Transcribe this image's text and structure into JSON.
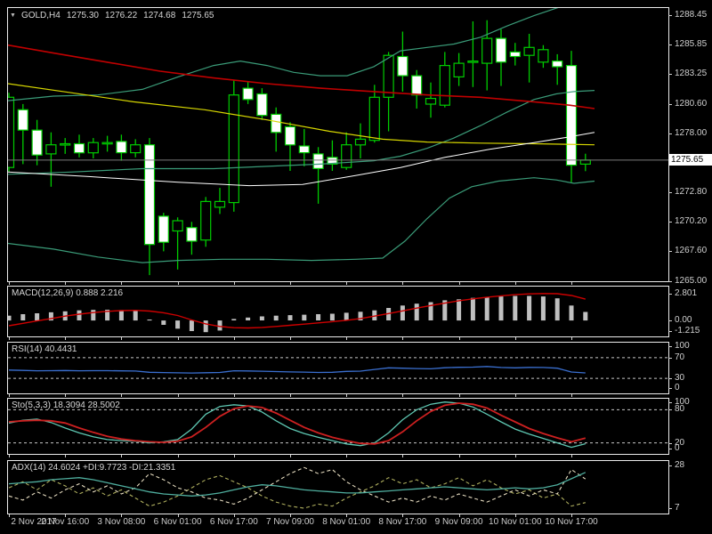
{
  "title": {
    "symbol_period": "GOLD,H4",
    "open": "1275.30",
    "high": "1276.22",
    "low": "1274.68",
    "close": "1275.65",
    "dropdown_icon": "symbol-dropdown"
  },
  "colors": {
    "background": "#000000",
    "panel_border": "#ececec",
    "candle_outline": "#00cc00",
    "bull_fill": "#000000",
    "bear_fill": "#ffffff",
    "bollinger": "#3a9b78",
    "ma_red": "#c00000",
    "ma_yellow": "#d6d600",
    "ma_white": "#ffffff",
    "current_price_line": "#7d7d7d",
    "price_tag_bg": "#ffffff",
    "price_tag_text": "#000000",
    "macd_histogram": "#c0c0c0",
    "macd_signal": "#cc0000",
    "rsi_line": "#3a6fd0",
    "level_dash": "#c8c8c8",
    "sto_main": "#5ec7b2",
    "sto_signal": "#cc2020",
    "adx_main": "#4fae9e",
    "adx_plus_di": "#aeae5e",
    "adx_minus_di": "#e6dcc0",
    "axis_text": "#cfcfcf"
  },
  "price_axis": {
    "labels": [
      {
        "text": "1288.45",
        "value": 1288.45
      },
      {
        "text": "1285.85",
        "value": 1285.85
      },
      {
        "text": "1283.25",
        "value": 1283.25
      },
      {
        "text": "1280.60",
        "value": 1280.6
      },
      {
        "text": "1278.00",
        "value": 1278.0
      },
      {
        "text": "1272.80",
        "value": 1272.8
      },
      {
        "text": "1270.20",
        "value": 1270.2
      },
      {
        "text": "1267.60",
        "value": 1267.6
      },
      {
        "text": "1265.00",
        "value": 1265.0
      }
    ],
    "current": {
      "text": "1275.65",
      "value": 1275.65
    }
  },
  "time_axis": {
    "labels": [
      {
        "text": "2 Nov 2017",
        "bar": 0
      },
      {
        "text": "2 Nov 16:00",
        "bar": 4
      },
      {
        "text": "3 Nov 08:00",
        "bar": 8
      },
      {
        "text": "6 Nov 01:00",
        "bar": 12
      },
      {
        "text": "6 Nov 17:00",
        "bar": 16
      },
      {
        "text": "7 Nov 09:00",
        "bar": 20
      },
      {
        "text": "8 Nov 01:00",
        "bar": 24
      },
      {
        "text": "8 Nov 17:00",
        "bar": 28
      },
      {
        "text": "9 Nov 09:00",
        "bar": 32
      },
      {
        "text": "10 Nov 01:00",
        "bar": 36
      },
      {
        "text": "10 Nov 17:00",
        "bar": 40
      }
    ]
  },
  "chart_data": {
    "type": "candlestick",
    "title": "GOLD,H4",
    "main": {
      "ylim": [
        1265.0,
        1288.45
      ],
      "current_price": 1275.65,
      "candles_ohlc": [
        [
          1275.0,
          1281.6,
          1274.6,
          1281.2
        ],
        [
          1280.1,
          1280.6,
          1275.3,
          1278.3
        ],
        [
          1278.3,
          1279.2,
          1275.2,
          1276.1
        ],
        [
          1276.2,
          1278.1,
          1273.3,
          1277.0
        ],
        [
          1277.0,
          1277.6,
          1276.2,
          1277.1
        ],
        [
          1277.1,
          1277.9,
          1275.9,
          1276.3
        ],
        [
          1276.3,
          1277.6,
          1275.8,
          1277.2
        ],
        [
          1277.2,
          1277.8,
          1276.4,
          1277.2
        ],
        [
          1277.3,
          1277.9,
          1275.6,
          1276.3
        ],
        [
          1276.3,
          1277.5,
          1275.9,
          1277.0
        ],
        [
          1277.0,
          1277.6,
          1265.5,
          1268.2
        ],
        [
          1270.7,
          1271.0,
          1267.6,
          1268.4
        ],
        [
          1269.4,
          1270.6,
          1266.0,
          1270.3
        ],
        [
          1269.7,
          1270.2,
          1267.3,
          1268.5
        ],
        [
          1268.6,
          1272.4,
          1268.0,
          1272.0
        ],
        [
          1271.5,
          1273.2,
          1270.9,
          1272.0
        ],
        [
          1271.9,
          1282.7,
          1271.1,
          1281.4
        ],
        [
          1282.0,
          1282.6,
          1280.6,
          1281.0
        ],
        [
          1281.5,
          1282.0,
          1279.2,
          1279.6
        ],
        [
          1279.7,
          1280.3,
          1276.4,
          1278.1
        ],
        [
          1278.6,
          1279.0,
          1274.7,
          1277.0
        ],
        [
          1276.9,
          1278.4,
          1275.1,
          1276.3
        ],
        [
          1276.2,
          1276.8,
          1271.8,
          1274.9
        ],
        [
          1275.9,
          1277.4,
          1274.7,
          1275.3
        ],
        [
          1275.0,
          1278.1,
          1274.8,
          1277.0
        ],
        [
          1277.0,
          1278.9,
          1275.8,
          1277.5
        ],
        [
          1277.4,
          1282.3,
          1277.2,
          1281.2
        ],
        [
          1281.2,
          1285.2,
          1278.2,
          1284.9
        ],
        [
          1284.8,
          1287.0,
          1281.7,
          1283.1
        ],
        [
          1283.1,
          1283.6,
          1280.2,
          1281.4
        ],
        [
          1280.6,
          1282.5,
          1279.4,
          1281.1
        ],
        [
          1280.5,
          1285.2,
          1280.3,
          1284.0
        ],
        [
          1283.0,
          1285.1,
          1282.2,
          1284.2
        ],
        [
          1284.3,
          1287.9,
          1282.1,
          1284.4
        ],
        [
          1284.2,
          1288.0,
          1281.8,
          1286.4
        ],
        [
          1286.4,
          1287.2,
          1282.2,
          1284.3
        ],
        [
          1285.2,
          1286.0,
          1284.0,
          1284.8
        ],
        [
          1284.9,
          1286.8,
          1282.5,
          1285.6
        ],
        [
          1284.3,
          1285.8,
          1283.8,
          1285.4
        ],
        [
          1284.4,
          1285.0,
          1282.3,
          1283.9
        ],
        [
          1284.0,
          1285.3,
          1273.7,
          1275.2
        ],
        [
          1275.3,
          1276.22,
          1274.68,
          1275.65
        ]
      ],
      "overlays": {
        "bb_upper": [
          [
            9,
            1280.9
          ],
          [
            60,
            1281.3
          ],
          [
            110,
            1281.4
          ],
          [
            160,
            1281.9
          ],
          [
            200,
            1283.0
          ],
          [
            240,
            1284.0
          ],
          [
            270,
            1284.4
          ],
          [
            300,
            1284.0
          ],
          [
            330,
            1283.4
          ],
          [
            360,
            1283.1
          ],
          [
            390,
            1283.1
          ],
          [
            420,
            1283.9
          ],
          [
            450,
            1285.3
          ],
          [
            480,
            1285.6
          ],
          [
            510,
            1285.9
          ],
          [
            540,
            1286.5
          ],
          [
            570,
            1287.5
          ],
          [
            600,
            1288.4
          ],
          [
            630,
            1289.2
          ],
          [
            655,
            1289.6
          ],
          [
            668,
            1289.7
          ]
        ],
        "bb_middle": [
          [
            9,
            1274.4
          ],
          [
            80,
            1274.6
          ],
          [
            160,
            1274.9
          ],
          [
            240,
            1274.9
          ],
          [
            300,
            1275.1
          ],
          [
            360,
            1275.3
          ],
          [
            420,
            1275.6
          ],
          [
            450,
            1276.0
          ],
          [
            480,
            1276.7
          ],
          [
            510,
            1277.6
          ],
          [
            540,
            1278.7
          ],
          [
            570,
            1279.9
          ],
          [
            600,
            1281.0
          ],
          [
            625,
            1281.5
          ],
          [
            645,
            1281.7
          ],
          [
            668,
            1281.8
          ]
        ],
        "bb_lower": [
          [
            9,
            1268.3
          ],
          [
            60,
            1267.8
          ],
          [
            110,
            1267.1
          ],
          [
            160,
            1266.6
          ],
          [
            200,
            1266.8
          ],
          [
            250,
            1266.9
          ],
          [
            300,
            1266.9
          ],
          [
            350,
            1266.8
          ],
          [
            400,
            1266.9
          ],
          [
            430,
            1267.0
          ],
          [
            455,
            1268.5
          ],
          [
            480,
            1270.5
          ],
          [
            505,
            1272.3
          ],
          [
            530,
            1273.3
          ],
          [
            560,
            1273.8
          ],
          [
            600,
            1274.1
          ],
          [
            625,
            1273.9
          ],
          [
            645,
            1273.6
          ],
          [
            668,
            1273.8
          ]
        ],
        "ma_red": [
          [
            9,
            1285.8
          ],
          [
            60,
            1285.1
          ],
          [
            120,
            1284.3
          ],
          [
            180,
            1283.5
          ],
          [
            240,
            1282.9
          ],
          [
            300,
            1282.4
          ],
          [
            360,
            1282.0
          ],
          [
            420,
            1281.7
          ],
          [
            480,
            1281.4
          ],
          [
            540,
            1281.2
          ],
          [
            600,
            1280.8
          ],
          [
            640,
            1280.5
          ],
          [
            668,
            1280.2
          ]
        ],
        "ma_yellow": [
          [
            9,
            1282.4
          ],
          [
            80,
            1281.6
          ],
          [
            150,
            1280.8
          ],
          [
            230,
            1280.1
          ],
          [
            300,
            1279.2
          ],
          [
            370,
            1278.2
          ],
          [
            430,
            1277.5
          ],
          [
            480,
            1277.25
          ],
          [
            540,
            1277.15
          ],
          [
            600,
            1277.1
          ],
          [
            668,
            1277.0
          ]
        ],
        "ma_white": [
          [
            9,
            1274.6
          ],
          [
            100,
            1274.2
          ],
          [
            200,
            1273.7
          ],
          [
            280,
            1273.4
          ],
          [
            340,
            1273.5
          ],
          [
            400,
            1274.3
          ],
          [
            450,
            1275.0
          ],
          [
            500,
            1275.9
          ],
          [
            550,
            1276.6
          ],
          [
            600,
            1277.2
          ],
          [
            640,
            1277.7
          ],
          [
            668,
            1278.1
          ]
        ]
      }
    },
    "macd": {
      "label": "MACD(12,26,9) 0.888 2.216",
      "value_main": 0.888,
      "value_signal": 2.216,
      "axis": [
        {
          "text": "2.801",
          "v": 2.801
        },
        {
          "text": "0.00",
          "v": 0
        },
        {
          "text": "-1.215",
          "v": -1.215
        }
      ],
      "histogram": [
        0.5,
        0.65,
        0.75,
        0.85,
        0.95,
        1.05,
        1.1,
        1.12,
        1.08,
        1.0,
        0.1,
        -0.45,
        -0.85,
        -1.1,
        -1.215,
        -1.05,
        0.15,
        0.3,
        0.42,
        0.5,
        0.55,
        0.6,
        0.65,
        0.7,
        0.8,
        0.9,
        1.05,
        1.3,
        1.55,
        1.75,
        1.9,
        2.1,
        2.2,
        2.35,
        2.45,
        2.5,
        2.55,
        2.55,
        2.5,
        2.3,
        1.55,
        0.888
      ],
      "signal": [
        -0.55,
        -0.3,
        -0.05,
        0.2,
        0.45,
        0.65,
        0.82,
        0.95,
        1.02,
        1.05,
        0.98,
        0.8,
        0.52,
        0.05,
        -0.35,
        -0.62,
        -0.75,
        -0.78,
        -0.72,
        -0.62,
        -0.5,
        -0.38,
        -0.25,
        -0.12,
        0.02,
        0.2,
        0.45,
        0.72,
        1.0,
        1.28,
        1.55,
        1.8,
        2.05,
        2.25,
        2.42,
        2.56,
        2.68,
        2.76,
        2.8,
        2.78,
        2.6,
        2.216
      ]
    },
    "rsi": {
      "label": "RSI(14) 40.4431",
      "value": 40.4431,
      "levels": [
        70,
        30
      ],
      "axis": [
        {
          "text": "100",
          "v": 100
        },
        {
          "text": "70",
          "v": 70
        },
        {
          "text": "30",
          "v": 30
        },
        {
          "text": "0",
          "v": 0
        }
      ],
      "values": [
        46.0,
        45.3,
        44.7,
        44.9,
        45.1,
        44.7,
        44.9,
        44.8,
        44.4,
        44.1,
        41.8,
        41.2,
        40.7,
        40.4,
        40.9,
        41.3,
        44.6,
        44.3,
        43.8,
        43.1,
        42.5,
        42.1,
        41.3,
        41.7,
        43.4,
        44.0,
        47.2,
        50.3,
        49.7,
        48.9,
        48.5,
        50.6,
        51.4,
        51.8,
        53.0,
        51.0,
        50.3,
        51.2,
        51.0,
        49.7,
        42.2,
        40.4431
      ]
    },
    "sto": {
      "label": "Sto(5,3,3) 18.3094 28.5002",
      "value_k": 18.3094,
      "value_d": 28.5002,
      "levels": [
        80,
        20
      ],
      "axis": [
        {
          "text": "100",
          "v": 100
        },
        {
          "text": "80",
          "v": 80
        },
        {
          "text": "20",
          "v": 20
        },
        {
          "text": "0",
          "v": 0
        }
      ],
      "k": [
        56,
        61,
        63,
        57,
        47,
        38,
        31,
        26,
        24,
        23,
        20,
        22,
        26,
        45,
        72,
        86,
        89,
        87,
        76,
        60,
        46,
        37,
        30,
        24,
        18,
        15,
        20,
        38,
        62,
        80,
        90,
        94,
        92,
        85,
        72,
        58,
        45,
        36,
        28,
        20,
        12,
        18.3094
      ],
      "d": [
        58,
        60,
        61,
        60,
        56,
        47,
        39,
        32,
        27,
        24,
        22,
        21,
        23,
        31,
        48,
        68,
        82,
        87,
        84,
        74,
        61,
        48,
        38,
        30,
        24,
        19,
        18,
        24,
        40,
        60,
        77,
        88,
        92,
        90,
        83,
        70,
        58,
        46,
        37,
        29,
        22,
        28.5002
      ]
    },
    "adx": {
      "label": "ADX(14) 24.6024 +DI:9.7723 -DI:21.3351",
      "value_adx": 24.6024,
      "value_plus_di": 9.7723,
      "value_minus_di": 21.3351,
      "axis": [
        {
          "text": "28",
          "v": 28
        },
        {
          "text": "7",
          "v": 7
        }
      ],
      "adx": [
        19,
        19.5,
        20,
        21,
        21.5,
        22,
        21,
        19.5,
        18,
        16.5,
        15,
        14,
        13.5,
        13,
        13.5,
        14.5,
        16,
        17.5,
        18.5,
        18,
        17,
        16,
        15.5,
        15,
        14.5,
        14.5,
        15,
        15.5,
        16,
        16.5,
        17,
        17.5,
        17,
        16.5,
        16,
        16.5,
        17,
        16.5,
        17,
        18.5,
        21.5,
        24.6024
      ],
      "plus_di": [
        17,
        20,
        16,
        21,
        18,
        14,
        17,
        13,
        16,
        12,
        8,
        10,
        13,
        17,
        21,
        23,
        20,
        17,
        13,
        10,
        8,
        7,
        9,
        8,
        12,
        15,
        18,
        22,
        19,
        21,
        17,
        19,
        22,
        18,
        21,
        17,
        14,
        16,
        12,
        14,
        8,
        9.7723
      ],
      "minus_di": [
        13,
        11,
        15,
        12,
        16,
        19,
        15,
        18,
        14,
        17,
        24,
        21,
        17,
        15,
        12,
        11,
        9,
        12,
        16,
        20,
        24,
        27,
        24,
        26,
        20,
        16,
        13,
        10,
        12,
        10,
        13,
        11,
        14,
        12,
        10,
        13,
        16,
        13,
        16,
        14,
        26,
        21.3351
      ]
    }
  }
}
